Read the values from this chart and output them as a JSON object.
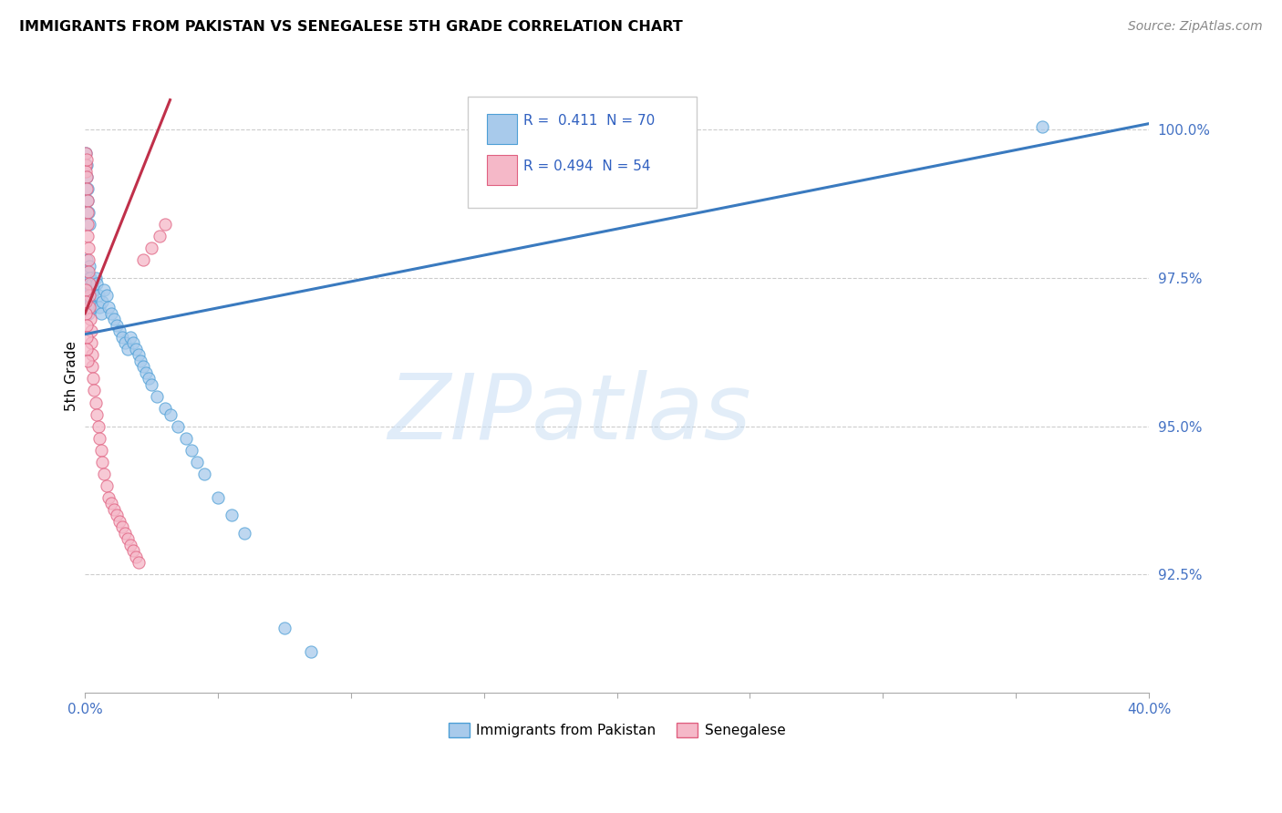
{
  "title": "IMMIGRANTS FROM PAKISTAN VS SENEGALESE 5TH GRADE CORRELATION CHART",
  "source": "Source: ZipAtlas.com",
  "ylabel": "5th Grade",
  "xmin": 0.0,
  "xmax": 40.0,
  "ymin": 90.5,
  "ymax": 101.2,
  "R_pakistan": 0.411,
  "N_pakistan": 70,
  "R_senegalese": 0.494,
  "N_senegalese": 54,
  "color_pakistan": "#a8caeb",
  "color_senegalese": "#f5b8c8",
  "color_pakistan_edge": "#4d9fd6",
  "color_senegalese_edge": "#e06080",
  "color_pakistan_line": "#3a7abf",
  "color_senegalese_line": "#c0304a",
  "legend_label_pakistan": "Immigrants from Pakistan",
  "legend_label_senegalese": "Senegalese",
  "pak_line_x0": 0.0,
  "pak_line_x1": 40.0,
  "pak_line_y0": 96.55,
  "pak_line_y1": 100.1,
  "sen_line_x0": 0.0,
  "sen_line_x1": 3.2,
  "sen_line_y0": 96.9,
  "sen_line_y1": 100.5,
  "yticks": [
    92.5,
    95.0,
    97.5,
    100.0
  ],
  "ytick_labels": [
    "92.5%",
    "95.0%",
    "97.5%",
    "100.0%"
  ],
  "xtick_vals": [
    0,
    5,
    10,
    15,
    20,
    25,
    30,
    35,
    40
  ],
  "pakistan_x": [
    0.02,
    0.03,
    0.04,
    0.05,
    0.06,
    0.07,
    0.08,
    0.09,
    0.1,
    0.11,
    0.12,
    0.13,
    0.14,
    0.15,
    0.16,
    0.17,
    0.18,
    0.2,
    0.22,
    0.24,
    0.26,
    0.28,
    0.3,
    0.35,
    0.4,
    0.45,
    0.5,
    0.55,
    0.6,
    0.65,
    0.7,
    0.8,
    0.9,
    1.0,
    1.1,
    1.2,
    1.3,
    1.4,
    1.5,
    1.6,
    1.7,
    1.8,
    1.9,
    2.0,
    2.1,
    2.2,
    2.3,
    2.4,
    2.5,
    2.7,
    3.0,
    3.2,
    3.5,
    3.8,
    4.0,
    4.2,
    4.5,
    5.0,
    5.5,
    6.0,
    0.03,
    0.05,
    0.07,
    0.09,
    0.11,
    0.13,
    0.15,
    36.0,
    7.5,
    8.5
  ],
  "pakistan_y": [
    97.4,
    97.2,
    97.6,
    97.8,
    97.5,
    97.3,
    97.1,
    97.6,
    97.4,
    97.2,
    97.0,
    96.9,
    97.3,
    97.5,
    97.7,
    97.4,
    97.2,
    97.5,
    97.3,
    97.1,
    97.4,
    97.2,
    97.0,
    97.3,
    97.5,
    97.4,
    97.2,
    97.0,
    96.9,
    97.1,
    97.3,
    97.2,
    97.0,
    96.9,
    96.8,
    96.7,
    96.6,
    96.5,
    96.4,
    96.3,
    96.5,
    96.4,
    96.3,
    96.2,
    96.1,
    96.0,
    95.9,
    95.8,
    95.7,
    95.5,
    95.3,
    95.2,
    95.0,
    94.8,
    94.6,
    94.4,
    94.2,
    93.8,
    93.5,
    93.2,
    99.6,
    99.4,
    99.2,
    99.0,
    98.8,
    98.6,
    98.4,
    100.05,
    91.6,
    91.2
  ],
  "senegalese_x": [
    0.02,
    0.03,
    0.04,
    0.05,
    0.06,
    0.07,
    0.08,
    0.09,
    0.1,
    0.11,
    0.12,
    0.13,
    0.14,
    0.15,
    0.16,
    0.18,
    0.2,
    0.22,
    0.24,
    0.26,
    0.28,
    0.3,
    0.35,
    0.4,
    0.45,
    0.5,
    0.55,
    0.6,
    0.65,
    0.7,
    0.8,
    0.9,
    1.0,
    1.1,
    1.2,
    1.3,
    1.4,
    1.5,
    1.6,
    1.7,
    1.8,
    1.9,
    2.0,
    2.2,
    2.5,
    2.8,
    3.0,
    0.02,
    0.03,
    0.04,
    0.05,
    0.06,
    0.07,
    0.08
  ],
  "senegalese_y": [
    99.6,
    99.4,
    99.3,
    99.5,
    99.2,
    99.0,
    98.8,
    98.6,
    98.4,
    98.2,
    98.0,
    97.8,
    97.6,
    97.4,
    97.2,
    97.0,
    96.8,
    96.6,
    96.4,
    96.2,
    96.0,
    95.8,
    95.6,
    95.4,
    95.2,
    95.0,
    94.8,
    94.6,
    94.4,
    94.2,
    94.0,
    93.8,
    93.7,
    93.6,
    93.5,
    93.4,
    93.3,
    93.2,
    93.1,
    93.0,
    92.9,
    92.8,
    92.7,
    97.8,
    98.0,
    98.2,
    98.4,
    97.3,
    97.1,
    96.9,
    96.7,
    96.5,
    96.3,
    96.1
  ]
}
